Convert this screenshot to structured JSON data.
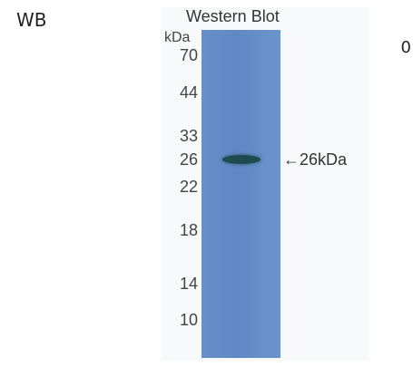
{
  "corner_label": "WB",
  "corner_number": "0",
  "blot": {
    "title": "Western Blot",
    "unit_label": "kDa",
    "markers": [
      "70",
      "44",
      "33",
      "26",
      "22",
      "18",
      "14",
      "10"
    ],
    "band_annotation": "←26kDa",
    "lane_color": "#6690c9",
    "band_color": "#1f4a4f"
  }
}
